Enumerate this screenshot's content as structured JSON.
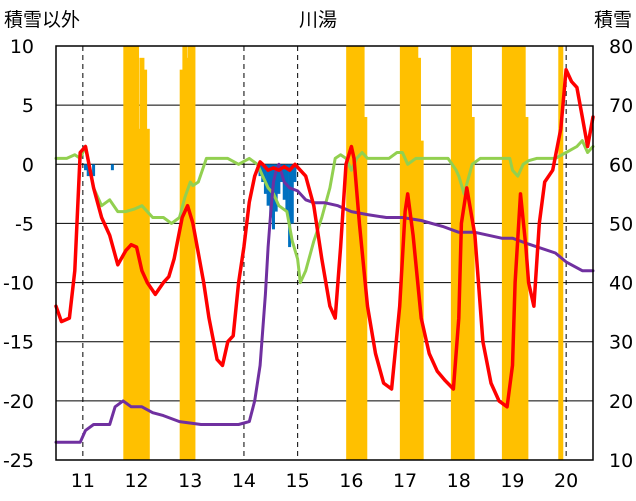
{
  "chart_data": {
    "type": "line",
    "title": "川湯",
    "left_axis_label": "積雪以外",
    "right_axis_label": "積雪",
    "left_ylim": [
      -25,
      10
    ],
    "left_ticks": [
      10,
      5,
      0,
      -5,
      -10,
      -15,
      -20,
      -25
    ],
    "right_ylim": [
      10,
      80
    ],
    "right_ticks": [
      80,
      70,
      60,
      50,
      40,
      30,
      20,
      10
    ],
    "x_range": [
      10.5,
      20.5
    ],
    "x_ticks": [
      11,
      12,
      13,
      14,
      15,
      16,
      17,
      18,
      19,
      20
    ],
    "colors": {
      "temperature": "#ff0000",
      "dewpoint": "#92d050",
      "snow_depth": "#7030a0",
      "precip_bars": "#ffc000",
      "negative_bars": "#0070c0",
      "grid": "#000000"
    },
    "series": [
      {
        "name": "temperature",
        "axis": "left",
        "x": [
          10.5,
          10.6,
          10.75,
          10.85,
          10.95,
          11.05,
          11.2,
          11.35,
          11.5,
          11.65,
          11.8,
          11.9,
          12.0,
          12.1,
          12.2,
          12.35,
          12.5,
          12.6,
          12.7,
          12.85,
          12.95,
          13.05,
          13.15,
          13.25,
          13.35,
          13.5,
          13.6,
          13.7,
          13.8,
          13.9,
          14.0,
          14.1,
          14.2,
          14.3,
          14.35,
          14.45,
          14.55,
          14.65,
          14.75,
          14.85,
          14.95,
          15.05,
          15.15,
          15.3,
          15.45,
          15.6,
          15.7,
          15.8,
          15.9,
          16.0,
          16.05,
          16.15,
          16.3,
          16.45,
          16.6,
          16.75,
          16.9,
          17.0,
          17.05,
          17.15,
          17.3,
          17.45,
          17.6,
          17.75,
          17.9,
          18.0,
          18.05,
          18.15,
          18.3,
          18.45,
          18.6,
          18.75,
          18.9,
          19.0,
          19.05,
          19.15,
          19.25,
          19.3,
          19.4,
          19.5,
          19.6,
          19.75,
          19.9,
          20.0,
          20.1,
          20.2,
          20.3,
          20.4,
          20.5
        ],
        "values": [
          -12,
          -13.3,
          -13,
          -9,
          1,
          1.5,
          -2,
          -4.5,
          -6,
          -8.5,
          -7.3,
          -6.8,
          -7,
          -9,
          -10,
          -11,
          -10,
          -9.5,
          -8,
          -4.5,
          -3.5,
          -5,
          -7.5,
          -10,
          -13,
          -16.5,
          -17,
          -15,
          -14.5,
          -10,
          -7,
          -3.2,
          -1,
          0.2,
          0,
          -0.5,
          -0.3,
          -0.5,
          -0.2,
          -0.5,
          0,
          -0.5,
          -1,
          -3.5,
          -8,
          -12,
          -13,
          -7,
          0,
          1.5,
          0.5,
          -5,
          -12,
          -16,
          -18.5,
          -19,
          -12,
          -4,
          -2.5,
          -6,
          -13,
          -16,
          -17.5,
          -18.3,
          -19,
          -13,
          -5,
          -2,
          -6,
          -15,
          -18.5,
          -20,
          -20.5,
          -17,
          -10,
          -2.5,
          -7,
          -10,
          -12,
          -5,
          -1.5,
          -0.5,
          3,
          8,
          7,
          6.5,
          4,
          1.5,
          4
        ]
      },
      {
        "name": "dewpoint",
        "axis": "left",
        "x": [
          10.5,
          10.7,
          10.85,
          10.95,
          11.05,
          11.2,
          11.35,
          11.5,
          11.65,
          11.8,
          11.95,
          12.1,
          12.3,
          12.5,
          12.65,
          12.8,
          12.9,
          13.0,
          13.05,
          13.15,
          13.3,
          13.5,
          13.7,
          13.9,
          14.1,
          14.25,
          14.35,
          14.45,
          14.55,
          14.65,
          14.8,
          14.9,
          15.0,
          15.05,
          15.15,
          15.3,
          15.45,
          15.6,
          15.7,
          15.8,
          15.9,
          16.0,
          16.1,
          16.2,
          16.3,
          16.5,
          16.7,
          16.85,
          16.95,
          17.05,
          17.2,
          17.4,
          17.6,
          17.8,
          17.95,
          18.0,
          18.1,
          18.25,
          18.4,
          18.6,
          18.8,
          18.95,
          19.0,
          19.1,
          19.2,
          19.3,
          19.45,
          19.6,
          19.8,
          20.0,
          20.2,
          20.3,
          20.4,
          20.5
        ],
        "values": [
          0.5,
          0.5,
          0.8,
          0.5,
          1.5,
          -2,
          -3.5,
          -3,
          -4,
          -4,
          -3.8,
          -3.5,
          -4.5,
          -4.5,
          -5,
          -4.5,
          -2.8,
          -1.5,
          -1.8,
          -1.5,
          0.5,
          0.5,
          0.5,
          0,
          0.5,
          0,
          -1,
          -2,
          -2.5,
          -3.5,
          -4,
          -6.5,
          -8,
          -10,
          -9,
          -6.5,
          -4.5,
          -2,
          0.5,
          0.8,
          0.5,
          -0.5,
          0.5,
          1,
          0.5,
          0.5,
          0.5,
          1,
          1,
          0,
          0.5,
          0.5,
          0.5,
          0.5,
          -0.5,
          -1,
          -2.5,
          0,
          0.5,
          0.5,
          0.5,
          0.5,
          -0.5,
          -1,
          0,
          0.3,
          0.5,
          0.5,
          0.5,
          1,
          1.5,
          2,
          1,
          1.5
        ]
      },
      {
        "name": "snow_depth",
        "axis": "right",
        "x": [
          10.5,
          10.95,
          11.05,
          11.2,
          11.5,
          11.6,
          11.75,
          11.9,
          12.1,
          12.3,
          12.5,
          12.8,
          13.2,
          13.9,
          14.1,
          14.2,
          14.3,
          14.4,
          14.45,
          14.5,
          14.55,
          14.6,
          14.65,
          14.75,
          14.85,
          15.0,
          15.15,
          15.3,
          15.5,
          15.75,
          16.0,
          16.3,
          16.65,
          16.95,
          17.3,
          17.7,
          18.0,
          18.3,
          18.8,
          19.0,
          19.3,
          19.8,
          20.0,
          20.3,
          20.5
        ],
        "values": [
          13,
          13,
          15,
          16,
          16,
          19,
          20,
          19,
          19,
          18,
          17.5,
          16.5,
          16,
          16,
          16.5,
          20,
          26,
          38,
          46,
          52,
          57,
          59,
          60,
          57,
          56,
          55.5,
          54,
          53.5,
          53.5,
          53,
          52,
          51.5,
          51,
          51,
          50.5,
          49.5,
          48.5,
          48.5,
          47.5,
          47.5,
          46.5,
          45,
          43.5,
          42,
          42
        ]
      }
    ],
    "precip_bars": {
      "axis": "right",
      "x": [
        11.8,
        11.85,
        11.9,
        11.95,
        12.0,
        12.05,
        12.1,
        12.15,
        12.2,
        12.85,
        12.9,
        12.95,
        13.0,
        13.05,
        15.95,
        16.0,
        16.05,
        16.1,
        16.15,
        16.2,
        16.25,
        16.95,
        17.0,
        17.05,
        17.1,
        17.15,
        17.2,
        17.25,
        17.3,
        17.9,
        17.95,
        18.0,
        18.05,
        18.1,
        18.15,
        18.2,
        18.25,
        18.85,
        18.9,
        18.95,
        19.0,
        19.05,
        19.1,
        19.15,
        19.2,
        19.25,
        19.9
      ],
      "values": [
        80,
        80,
        80,
        80,
        80,
        66,
        78,
        76,
        66,
        76,
        80,
        78,
        80,
        80,
        80,
        80,
        80,
        80,
        80,
        80,
        68,
        80,
        80,
        80,
        80,
        80,
        80,
        78,
        64,
        80,
        80,
        80,
        80,
        80,
        80,
        80,
        68,
        80,
        80,
        80,
        80,
        80,
        80,
        80,
        80,
        68,
        80
      ]
    },
    "negative_bars": {
      "axis": "left",
      "x": [
        11.05,
        11.1,
        11.2,
        11.55,
        14.3,
        14.35,
        14.4,
        14.45,
        14.5,
        14.55,
        14.6,
        14.65,
        14.7,
        14.75,
        14.8,
        14.85,
        14.9,
        14.95
      ],
      "values": [
        -0.5,
        -1,
        -1,
        -0.5,
        -1,
        -1.5,
        -2.5,
        -3.5,
        -4.5,
        -5.5,
        -4,
        -2.5,
        -1.5,
        -3,
        -4,
        -7,
        -5,
        -1.5
      ]
    }
  }
}
